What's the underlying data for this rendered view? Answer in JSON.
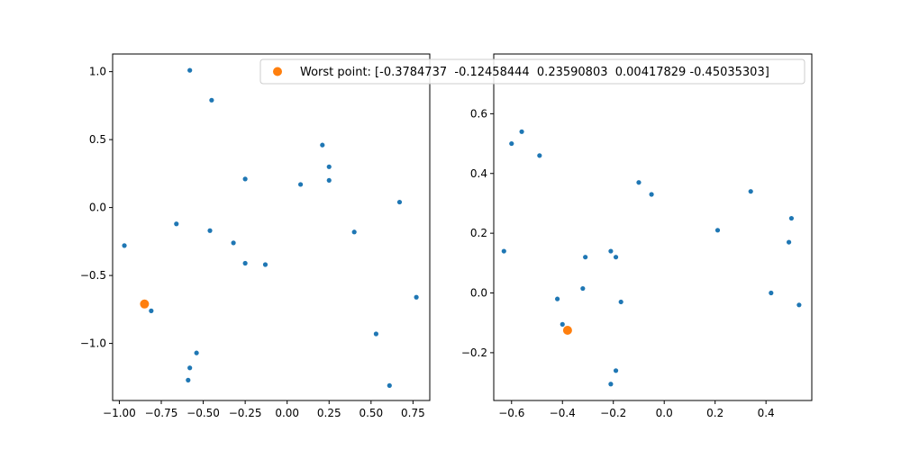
{
  "chart_data": [
    {
      "type": "scatter",
      "title": "",
      "xlabel": "",
      "ylabel": "",
      "xlim": [
        -1.04,
        0.85
      ],
      "ylim": [
        -1.42,
        1.13
      ],
      "xticks": [
        -1.0,
        -0.75,
        -0.5,
        -0.25,
        0.0,
        0.25,
        0.5,
        0.75
      ],
      "xtick_labels": [
        "−1.00",
        "−0.75",
        "−0.50",
        "−0.25",
        "0.00",
        "0.25",
        "0.50",
        "0.75"
      ],
      "yticks": [
        -1.0,
        -0.5,
        0.0,
        0.5,
        1.0
      ],
      "ytick_labels": [
        "−1.0",
        "−0.5",
        "0.0",
        "0.5",
        "1.0"
      ],
      "grid": false,
      "series": [
        {
          "color": "#1f77b4",
          "marker_size": "small",
          "x": [
            -0.58,
            -0.45,
            0.21,
            0.25,
            0.25,
            -0.25,
            0.08,
            0.67,
            -0.66,
            -0.46,
            -0.97,
            -0.32,
            -0.25,
            -0.13,
            0.4,
            0.77,
            -0.81,
            0.53,
            -0.54,
            -0.58,
            -0.59,
            0.61
          ],
          "y": [
            1.01,
            0.79,
            0.46,
            0.3,
            0.2,
            0.21,
            0.17,
            0.04,
            -0.12,
            -0.17,
            -0.28,
            -0.26,
            -0.41,
            -0.42,
            -0.18,
            -0.66,
            -0.76,
            -0.93,
            -1.07,
            -1.18,
            -1.27,
            -1.31
          ]
        },
        {
          "name": "Worst point: [-0.3784737  -0.12458444  0.23590803  0.00417829 -0.45035303]",
          "color": "#ff7f0e",
          "marker_size": "large",
          "x": [
            -0.85
          ],
          "y": [
            -0.71
          ]
        }
      ],
      "legend": "top-right"
    },
    {
      "type": "scatter",
      "title": "",
      "xlabel": "",
      "ylabel": "",
      "xlim": [
        -0.67,
        0.58
      ],
      "ylim": [
        -0.36,
        0.8
      ],
      "xticks": [
        -0.6,
        -0.4,
        -0.2,
        0.0,
        0.2,
        0.4
      ],
      "xtick_labels": [
        "−0.6",
        "−0.4",
        "−0.2",
        "0.0",
        "0.2",
        "0.4"
      ],
      "yticks": [
        -0.2,
        0.0,
        0.2,
        0.4,
        0.6
      ],
      "ytick_labels": [
        "−0.2",
        "0.0",
        "0.2",
        "0.4",
        "0.6"
      ],
      "grid": false,
      "series": [
        {
          "color": "#1f77b4",
          "marker_size": "small",
          "x": [
            -0.56,
            -0.6,
            -0.49,
            -0.63,
            -0.1,
            -0.05,
            0.34,
            0.5,
            0.21,
            0.49,
            -0.21,
            -0.19,
            -0.31,
            -0.32,
            -0.42,
            -0.17,
            0.42,
            0.53,
            -0.4,
            -0.19,
            -0.21
          ],
          "y": [
            0.54,
            0.5,
            0.46,
            0.14,
            0.37,
            0.33,
            0.34,
            0.25,
            0.21,
            0.17,
            0.14,
            0.12,
            0.12,
            0.015,
            -0.02,
            -0.03,
            0.0,
            -0.04,
            -0.105,
            -0.26,
            -0.305
          ]
        },
        {
          "color": "#ff7f0e",
          "marker_size": "large",
          "x": [
            -0.38
          ],
          "y": [
            -0.125
          ]
        }
      ]
    }
  ]
}
